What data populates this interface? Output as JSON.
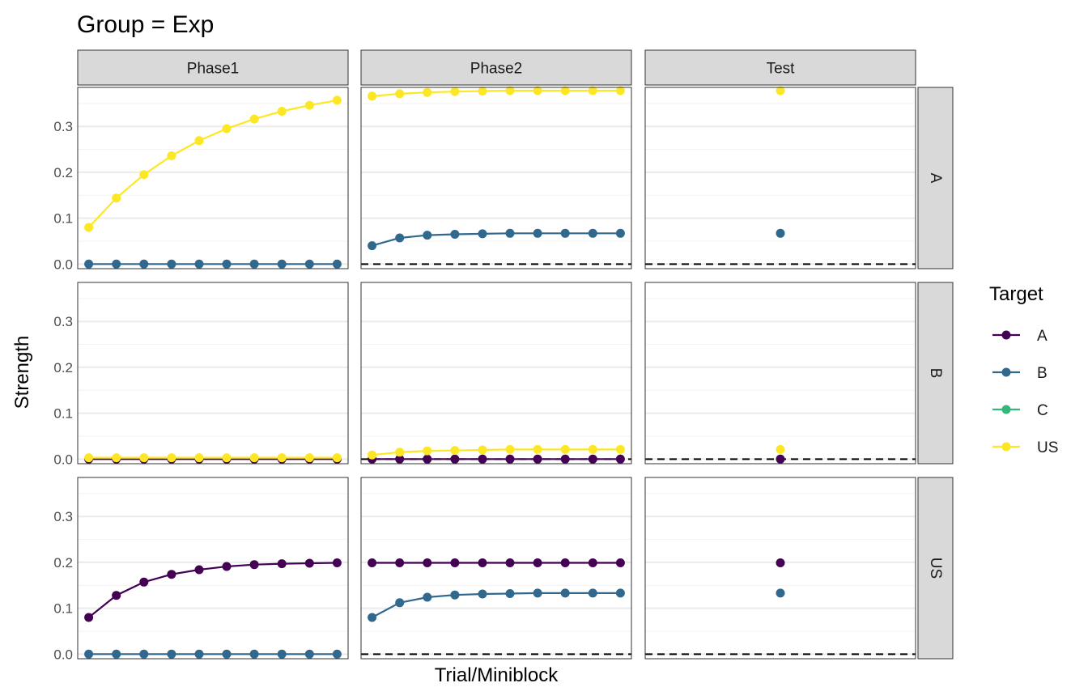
{
  "chart_data": {
    "type": "line",
    "title": "Group = Exp",
    "xlabel": "Trial/Miniblock",
    "ylabel": "Strength",
    "ylim": [
      -0.01,
      0.385
    ],
    "yticks": [
      "0.0",
      "0.1",
      "0.2",
      "0.3"
    ],
    "ytick_values": [
      0.0,
      0.1,
      0.2,
      0.3
    ],
    "grid": true,
    "legend": {
      "title": "Target",
      "position": "right"
    },
    "columns": [
      "Phase1",
      "Phase2",
      "Test"
    ],
    "rows": [
      "A",
      "B",
      "US"
    ],
    "targets": [
      {
        "name": "A",
        "color": "#440154"
      },
      {
        "name": "B",
        "color": "#31688E"
      },
      {
        "name": "C",
        "color": "#35B779"
      },
      {
        "name": "US",
        "color": "#FDE725"
      }
    ],
    "panels": [
      {
        "row": "A",
        "column": "Phase1",
        "reference_line": false,
        "series": [
          {
            "target": "US",
            "x": [
              1,
              2,
              3,
              4,
              5,
              6,
              7,
              8,
              9,
              10
            ],
            "y": [
              0.08,
              0.144,
              0.195,
              0.236,
              0.269,
              0.295,
              0.316,
              0.333,
              0.346,
              0.357
            ]
          },
          {
            "target": "B",
            "x": [
              1,
              2,
              3,
              4,
              5,
              6,
              7,
              8,
              9,
              10
            ],
            "y": [
              0,
              0,
              0,
              0,
              0,
              0,
              0,
              0,
              0,
              0
            ]
          }
        ]
      },
      {
        "row": "A",
        "column": "Phase2",
        "reference_line": true,
        "series": [
          {
            "target": "US",
            "x": [
              1,
              2,
              3,
              4,
              5,
              6,
              7,
              8,
              9,
              10
            ],
            "y": [
              0.366,
              0.371,
              0.374,
              0.376,
              0.377,
              0.378,
              0.378,
              0.378,
              0.378,
              0.378
            ]
          },
          {
            "target": "B",
            "x": [
              1,
              2,
              3,
              4,
              5,
              6,
              7,
              8,
              9,
              10
            ],
            "y": [
              0.04,
              0.057,
              0.063,
              0.065,
              0.066,
              0.067,
              0.067,
              0.067,
              0.067,
              0.067
            ]
          }
        ]
      },
      {
        "row": "A",
        "column": "Test",
        "reference_line": true,
        "series": [
          {
            "target": "US",
            "x": [
              1
            ],
            "y": [
              0.378
            ]
          },
          {
            "target": "B",
            "x": [
              1
            ],
            "y": [
              0.067
            ]
          }
        ]
      },
      {
        "row": "B",
        "column": "Phase1",
        "reference_line": false,
        "series": [
          {
            "target": "A",
            "x": [
              1,
              2,
              3,
              4,
              5,
              6,
              7,
              8,
              9,
              10
            ],
            "y": [
              0,
              0,
              0,
              0,
              0,
              0,
              0,
              0,
              0,
              0
            ]
          },
          {
            "target": "US",
            "x": [
              1,
              2,
              3,
              4,
              5,
              6,
              7,
              8,
              9,
              10
            ],
            "y": [
              0.003,
              0.003,
              0.003,
              0.003,
              0.003,
              0.003,
              0.003,
              0.003,
              0.003,
              0.003
            ]
          }
        ]
      },
      {
        "row": "B",
        "column": "Phase2",
        "reference_line": true,
        "series": [
          {
            "target": "A",
            "x": [
              1,
              2,
              3,
              4,
              5,
              6,
              7,
              8,
              9,
              10
            ],
            "y": [
              0,
              0,
              0,
              0,
              0,
              0,
              0,
              0,
              0,
              0
            ]
          },
          {
            "target": "US",
            "x": [
              1,
              2,
              3,
              4,
              5,
              6,
              7,
              8,
              9,
              10
            ],
            "y": [
              0.009,
              0.015,
              0.018,
              0.019,
              0.02,
              0.021,
              0.021,
              0.021,
              0.021,
              0.021
            ]
          }
        ]
      },
      {
        "row": "B",
        "column": "Test",
        "reference_line": true,
        "series": [
          {
            "target": "US",
            "x": [
              1
            ],
            "y": [
              0.021
            ]
          },
          {
            "target": "A",
            "x": [
              1
            ],
            "y": [
              0
            ]
          }
        ]
      },
      {
        "row": "US",
        "column": "Phase1",
        "reference_line": false,
        "series": [
          {
            "target": "A",
            "x": [
              1,
              2,
              3,
              4,
              5,
              6,
              7,
              8,
              9,
              10
            ],
            "y": [
              0.08,
              0.128,
              0.157,
              0.174,
              0.184,
              0.191,
              0.195,
              0.197,
              0.198,
              0.199
            ]
          },
          {
            "target": "B",
            "x": [
              1,
              2,
              3,
              4,
              5,
              6,
              7,
              8,
              9,
              10
            ],
            "y": [
              0,
              0,
              0,
              0,
              0,
              0,
              0,
              0,
              0,
              0
            ]
          }
        ]
      },
      {
        "row": "US",
        "column": "Phase2",
        "reference_line": true,
        "series": [
          {
            "target": "A",
            "x": [
              1,
              2,
              3,
              4,
              5,
              6,
              7,
              8,
              9,
              10
            ],
            "y": [
              0.199,
              0.199,
              0.199,
              0.199,
              0.199,
              0.199,
              0.199,
              0.199,
              0.199,
              0.199
            ]
          },
          {
            "target": "B",
            "x": [
              1,
              2,
              3,
              4,
              5,
              6,
              7,
              8,
              9,
              10
            ],
            "y": [
              0.08,
              0.112,
              0.124,
              0.129,
              0.131,
              0.132,
              0.133,
              0.133,
              0.133,
              0.133
            ]
          }
        ]
      },
      {
        "row": "US",
        "column": "Test",
        "reference_line": true,
        "series": [
          {
            "target": "A",
            "x": [
              1
            ],
            "y": [
              0.199
            ]
          },
          {
            "target": "B",
            "x": [
              1
            ],
            "y": [
              0.133
            ]
          }
        ]
      }
    ]
  }
}
